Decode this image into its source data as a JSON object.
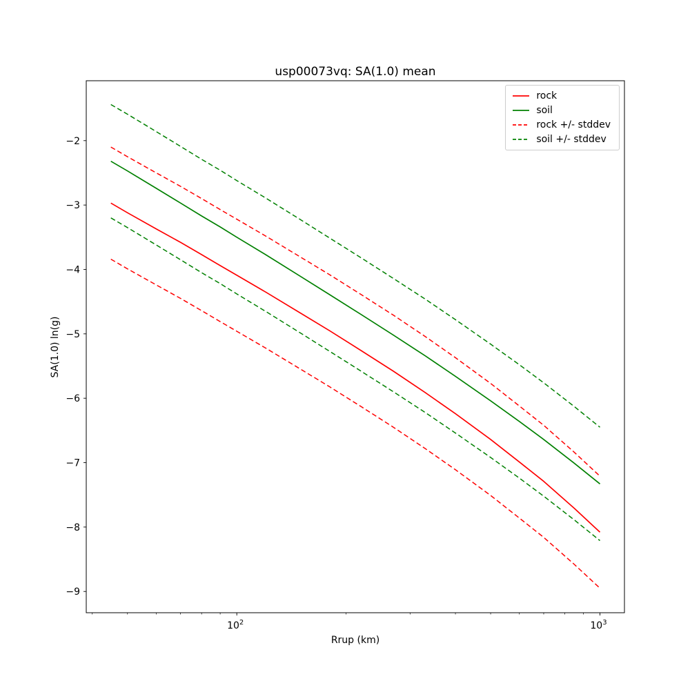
{
  "chart_data": {
    "type": "line",
    "title": "usp00073vq: SA(1.0) mean",
    "xlabel": "Rrup (km)",
    "ylabel": "SA(1.0) ln(g)",
    "x_scale": "log",
    "y_scale": "linear",
    "xlim": [
      38.5,
      1168
    ],
    "ylim": [
      -9.33,
      -1.07
    ],
    "grid": false,
    "x_major_ticks": [
      {
        "value": 100,
        "base": "10",
        "exp": "2"
      },
      {
        "value": 1000,
        "base": "10",
        "exp": "3"
      }
    ],
    "x_minor_ticks": [
      40,
      50,
      60,
      70,
      80,
      90,
      200,
      300,
      400,
      500,
      600,
      700,
      800,
      900
    ],
    "y_ticks": [
      {
        "value": -2,
        "label": "−2"
      },
      {
        "value": -3,
        "label": "−3"
      },
      {
        "value": -4,
        "label": "−4"
      },
      {
        "value": -5,
        "label": "−5"
      },
      {
        "value": -6,
        "label": "−6"
      },
      {
        "value": -7,
        "label": "−7"
      },
      {
        "value": -8,
        "label": "−8"
      },
      {
        "value": -9,
        "label": "−9"
      }
    ],
    "x": [
      45,
      50,
      60,
      70,
      80,
      90,
      100,
      120,
      150,
      180,
      220,
      270,
      330,
      400,
      500,
      600,
      700,
      850,
      1000
    ],
    "curves": [
      {
        "name": "rock mean",
        "color": "#ff0000",
        "dash": false,
        "width": 1.7,
        "values": [
          -2.97,
          -3.12,
          -3.37,
          -3.58,
          -3.77,
          -3.94,
          -4.09,
          -4.35,
          -4.68,
          -4.95,
          -5.26,
          -5.58,
          -5.91,
          -6.24,
          -6.64,
          -6.99,
          -7.29,
          -7.71,
          -8.08
        ]
      },
      {
        "name": "soil mean",
        "color": "#008000",
        "dash": false,
        "width": 1.7,
        "values": [
          -2.32,
          -2.47,
          -2.74,
          -2.97,
          -3.17,
          -3.34,
          -3.5,
          -3.77,
          -4.11,
          -4.39,
          -4.7,
          -5.02,
          -5.34,
          -5.66,
          -6.04,
          -6.36,
          -6.64,
          -7.01,
          -7.33
        ]
      },
      {
        "name": "rock mean plus stddev",
        "color": "#ff0000",
        "dash": true,
        "width": 1.5,
        "values": [
          -2.1,
          -2.25,
          -2.5,
          -2.71,
          -2.9,
          -3.07,
          -3.22,
          -3.48,
          -3.81,
          -4.08,
          -4.39,
          -4.71,
          -5.04,
          -5.37,
          -5.77,
          -6.12,
          -6.42,
          -6.84,
          -7.21
        ]
      },
      {
        "name": "rock mean minus stddev",
        "color": "#ff0000",
        "dash": true,
        "width": 1.5,
        "values": [
          -3.84,
          -3.99,
          -4.24,
          -4.45,
          -4.64,
          -4.81,
          -4.96,
          -5.22,
          -5.55,
          -5.82,
          -6.13,
          -6.45,
          -6.78,
          -7.11,
          -7.51,
          -7.86,
          -8.16,
          -8.58,
          -8.95
        ]
      },
      {
        "name": "soil mean plus stddev",
        "color": "#008000",
        "dash": true,
        "width": 1.5,
        "values": [
          -1.44,
          -1.59,
          -1.86,
          -2.09,
          -2.29,
          -2.46,
          -2.62,
          -2.89,
          -3.23,
          -3.51,
          -3.82,
          -4.14,
          -4.46,
          -4.78,
          -5.16,
          -5.48,
          -5.76,
          -6.13,
          -6.45
        ]
      },
      {
        "name": "soil mean minus stddev",
        "color": "#008000",
        "dash": true,
        "width": 1.5,
        "values": [
          -3.2,
          -3.35,
          -3.62,
          -3.85,
          -4.05,
          -4.22,
          -4.38,
          -4.65,
          -4.99,
          -5.27,
          -5.58,
          -5.9,
          -6.22,
          -6.54,
          -6.92,
          -7.24,
          -7.52,
          -7.89,
          -8.21
        ]
      }
    ],
    "legend": {
      "position": "upper right",
      "entries": [
        {
          "label": "rock",
          "color": "#ff0000",
          "dash": false
        },
        {
          "label": "soil",
          "color": "#008000",
          "dash": false
        },
        {
          "label": "rock +/- stddev",
          "color": "#ff0000",
          "dash": true
        },
        {
          "label": "soil +/- stddev",
          "color": "#008000",
          "dash": true
        }
      ]
    }
  }
}
